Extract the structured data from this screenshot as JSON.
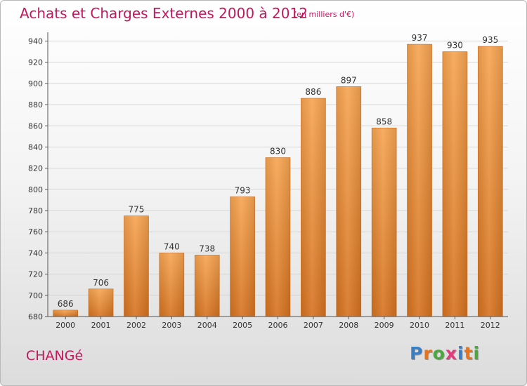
{
  "title": "Achats et Charges Externes 2000 à 2012",
  "unit_note": "(en milliers d'€)",
  "place": "CHANGé",
  "logo": {
    "text": "Proxiti",
    "letter_colors": [
      "#3a7fc4",
      "#e8731a",
      "#4aa83c",
      "#e23a7a",
      "#3a7fc4",
      "#e8731a",
      "#4aa83c"
    ]
  },
  "colors": {
    "bar_top": "#f6a451",
    "bar_bottom": "#d5721f",
    "grid": "#d6d6d6",
    "axis": "#555555",
    "title": "#c2185b"
  },
  "chart_data": {
    "type": "bar",
    "title": "Achats et Charges Externes 2000 à 2012",
    "xlabel": "",
    "ylabel": "",
    "categories": [
      "2000",
      "2001",
      "2002",
      "2003",
      "2004",
      "2005",
      "2006",
      "2007",
      "2008",
      "2009",
      "2010",
      "2011",
      "2012"
    ],
    "values": [
      686,
      706,
      775,
      740,
      738,
      793,
      830,
      886,
      897,
      858,
      937,
      930,
      935
    ],
    "ylim": [
      680,
      945
    ],
    "yticks": [
      680,
      700,
      720,
      740,
      760,
      780,
      800,
      820,
      840,
      860,
      880,
      900,
      920,
      940
    ],
    "grid": true
  }
}
